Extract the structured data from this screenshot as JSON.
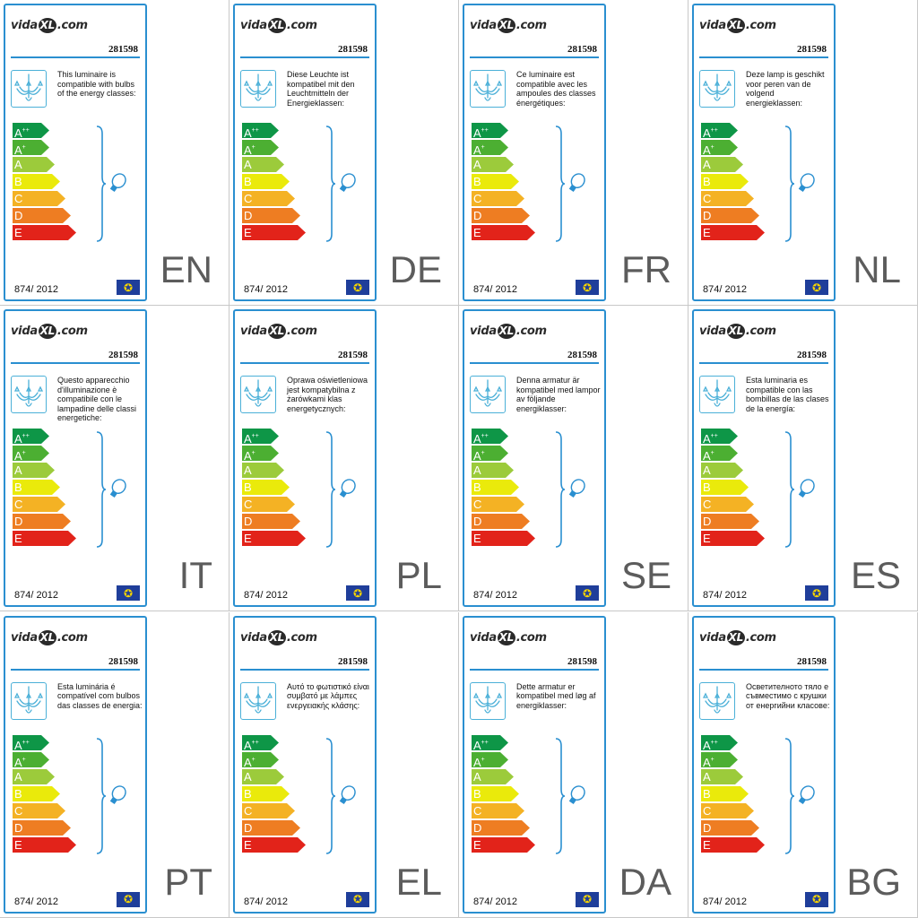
{
  "brand": {
    "logo_pre": "vida",
    "logo_mid": "XL",
    "logo_post": ".com"
  },
  "product_code": "281598",
  "regulation": "874/ 2012",
  "eu_flag_icon": "eu-flag",
  "colors": {
    "frame": "#2a8fd0",
    "icon": "#4bb0d8",
    "text": "#111111",
    "lang": "#5c5c5c"
  },
  "energy_classes": [
    {
      "letter": "A",
      "sup": "++",
      "color": "#0e9647"
    },
    {
      "letter": "A",
      "sup": "+",
      "color": "#4caf32"
    },
    {
      "letter": "A",
      "sup": "",
      "color": "#9ccb3b"
    },
    {
      "letter": "B",
      "sup": "",
      "color": "#eaea0b"
    },
    {
      "letter": "C",
      "sup": "",
      "color": "#f4b224"
    },
    {
      "letter": "D",
      "sup": "",
      "color": "#ee7d22"
    },
    {
      "letter": "E",
      "sup": "",
      "color": "#e2231a"
    }
  ],
  "labels": [
    {
      "lang": "EN",
      "text": "This luminaire is compatible with bulbs of the energy classes:"
    },
    {
      "lang": "DE",
      "text": "Diese Leuchte ist kompatibel mit den Leuchtmitteln der Energieklassen:"
    },
    {
      "lang": "FR",
      "text": "Ce luminaire est compatible avec les ampoules des classes énergétiques:"
    },
    {
      "lang": "NL",
      "text": "Deze lamp is geschikt voor peren van de volgend energieklassen:"
    },
    {
      "lang": "IT",
      "text": "Questo apparecchio d'illuminazione è compatibile con le lampadine delle classi energetiche:"
    },
    {
      "lang": "PL",
      "text": "Oprawa oświetleniowa jest kompatybilna z żarówkami klas energetycznych:"
    },
    {
      "lang": "SE",
      "text": "Denna armatur är kompatibel med lampor av följande energiklasser:"
    },
    {
      "lang": "ES",
      "text": "Esta luminaria es compatible con las bombillas de las clases de la energía:"
    },
    {
      "lang": "PT",
      "text": "Esta luminária é compatível com bulbos das classes de energia:"
    },
    {
      "lang": "EL",
      "text": "Αυτό το φωτιστικό είναι συμβατό με λάμπες ενεργειακής κλάσης:"
    },
    {
      "lang": "DA",
      "text": "Dette armatur er kompatibel med løg af energiklasser:"
    },
    {
      "lang": "BG",
      "text": "Осветителното тяло е съвместимо с крушки от енергийни класове:"
    }
  ]
}
